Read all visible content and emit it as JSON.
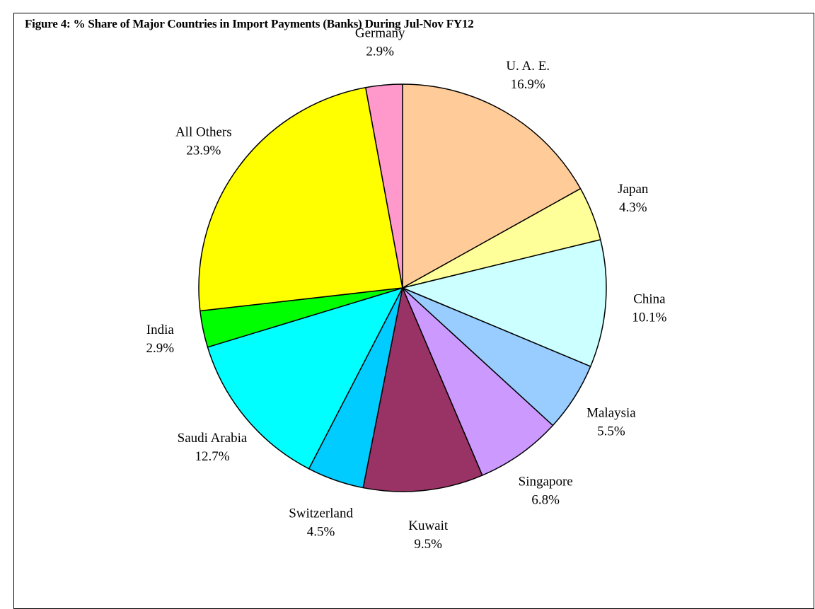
{
  "chart_data": {
    "type": "pie",
    "title": "Figure 4: % Share of Major Countries in Import Payments (Banks) During Jul-Nov FY12",
    "slices": [
      {
        "name": "U. A. E.",
        "value": 16.9,
        "label": "16.9%",
        "color": "#FFCC99"
      },
      {
        "name": "Japan",
        "value": 4.3,
        "label": "4.3%",
        "color": "#FFFF99"
      },
      {
        "name": "China",
        "value": 10.1,
        "label": "10.1%",
        "color": "#CCFFFF"
      },
      {
        "name": "Malaysia",
        "value": 5.5,
        "label": "5.5%",
        "color": "#99CCFF"
      },
      {
        "name": "Singapore",
        "value": 6.8,
        "label": "6.8%",
        "color": "#CC99FF"
      },
      {
        "name": "Kuwait",
        "value": 9.5,
        "label": "9.5%",
        "color": "#993366"
      },
      {
        "name": "Switzerland",
        "value": 4.5,
        "label": "4.5%",
        "color": "#00CCFF"
      },
      {
        "name": "Saudi Arabia",
        "value": 12.7,
        "label": "12.7%",
        "color": "#00FFFF"
      },
      {
        "name": "India",
        "value": 2.9,
        "label": "2.9%",
        "color": "#00FF00"
      },
      {
        "name": "All Others",
        "value": 23.9,
        "label": "23.9%",
        "color": "#FFFF00"
      },
      {
        "name": "Germany",
        "value": 2.9,
        "label": "2.9%",
        "color": "#FF99CC"
      }
    ],
    "start_angle": "12 o'clock",
    "direction": "clockwise",
    "legend": "none",
    "data_labels": "category name and percentage, outside slices"
  }
}
